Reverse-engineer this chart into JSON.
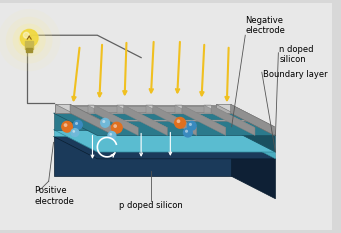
{
  "bg_color": "#d8d8d8",
  "colors": {
    "p_silicon_front": "#1b3a5a",
    "p_silicon_top": "#1b3a5a",
    "p_silicon_right": "#0e2035",
    "n_silicon_front": "#2b7a8c",
    "n_silicon_top": "#2b7a8c",
    "n_silicon_right": "#1a5060",
    "boundary_teal": "#5abcd0",
    "boundary_side": "#4aacc0",
    "electrode_top": "#c8c8c8",
    "electrode_front": "#a0a0a0",
    "electrode_right": "#909090",
    "bus_top": "#d0d0d0",
    "bus_front": "#b0b0b0",
    "arrow_yellow": "#f0c020",
    "ball_orange": "#e07020",
    "ball_blue": "#3a8abf",
    "ball_light": "#70b8d8",
    "wire_color": "#606060",
    "glow_color": "#ffee88",
    "bulb_color": "#f0d840",
    "label_line": "#555555"
  },
  "labels": {
    "negative_electrode": "Negative\nelectrode",
    "n_doped": "n doped\nsilicon",
    "boundary": "Boundary layer",
    "p_doped": "p doped silicon",
    "positive_electrode": "Positive\nelectrode"
  },
  "font_size": 6.0,
  "arrow_lw": 1.5
}
